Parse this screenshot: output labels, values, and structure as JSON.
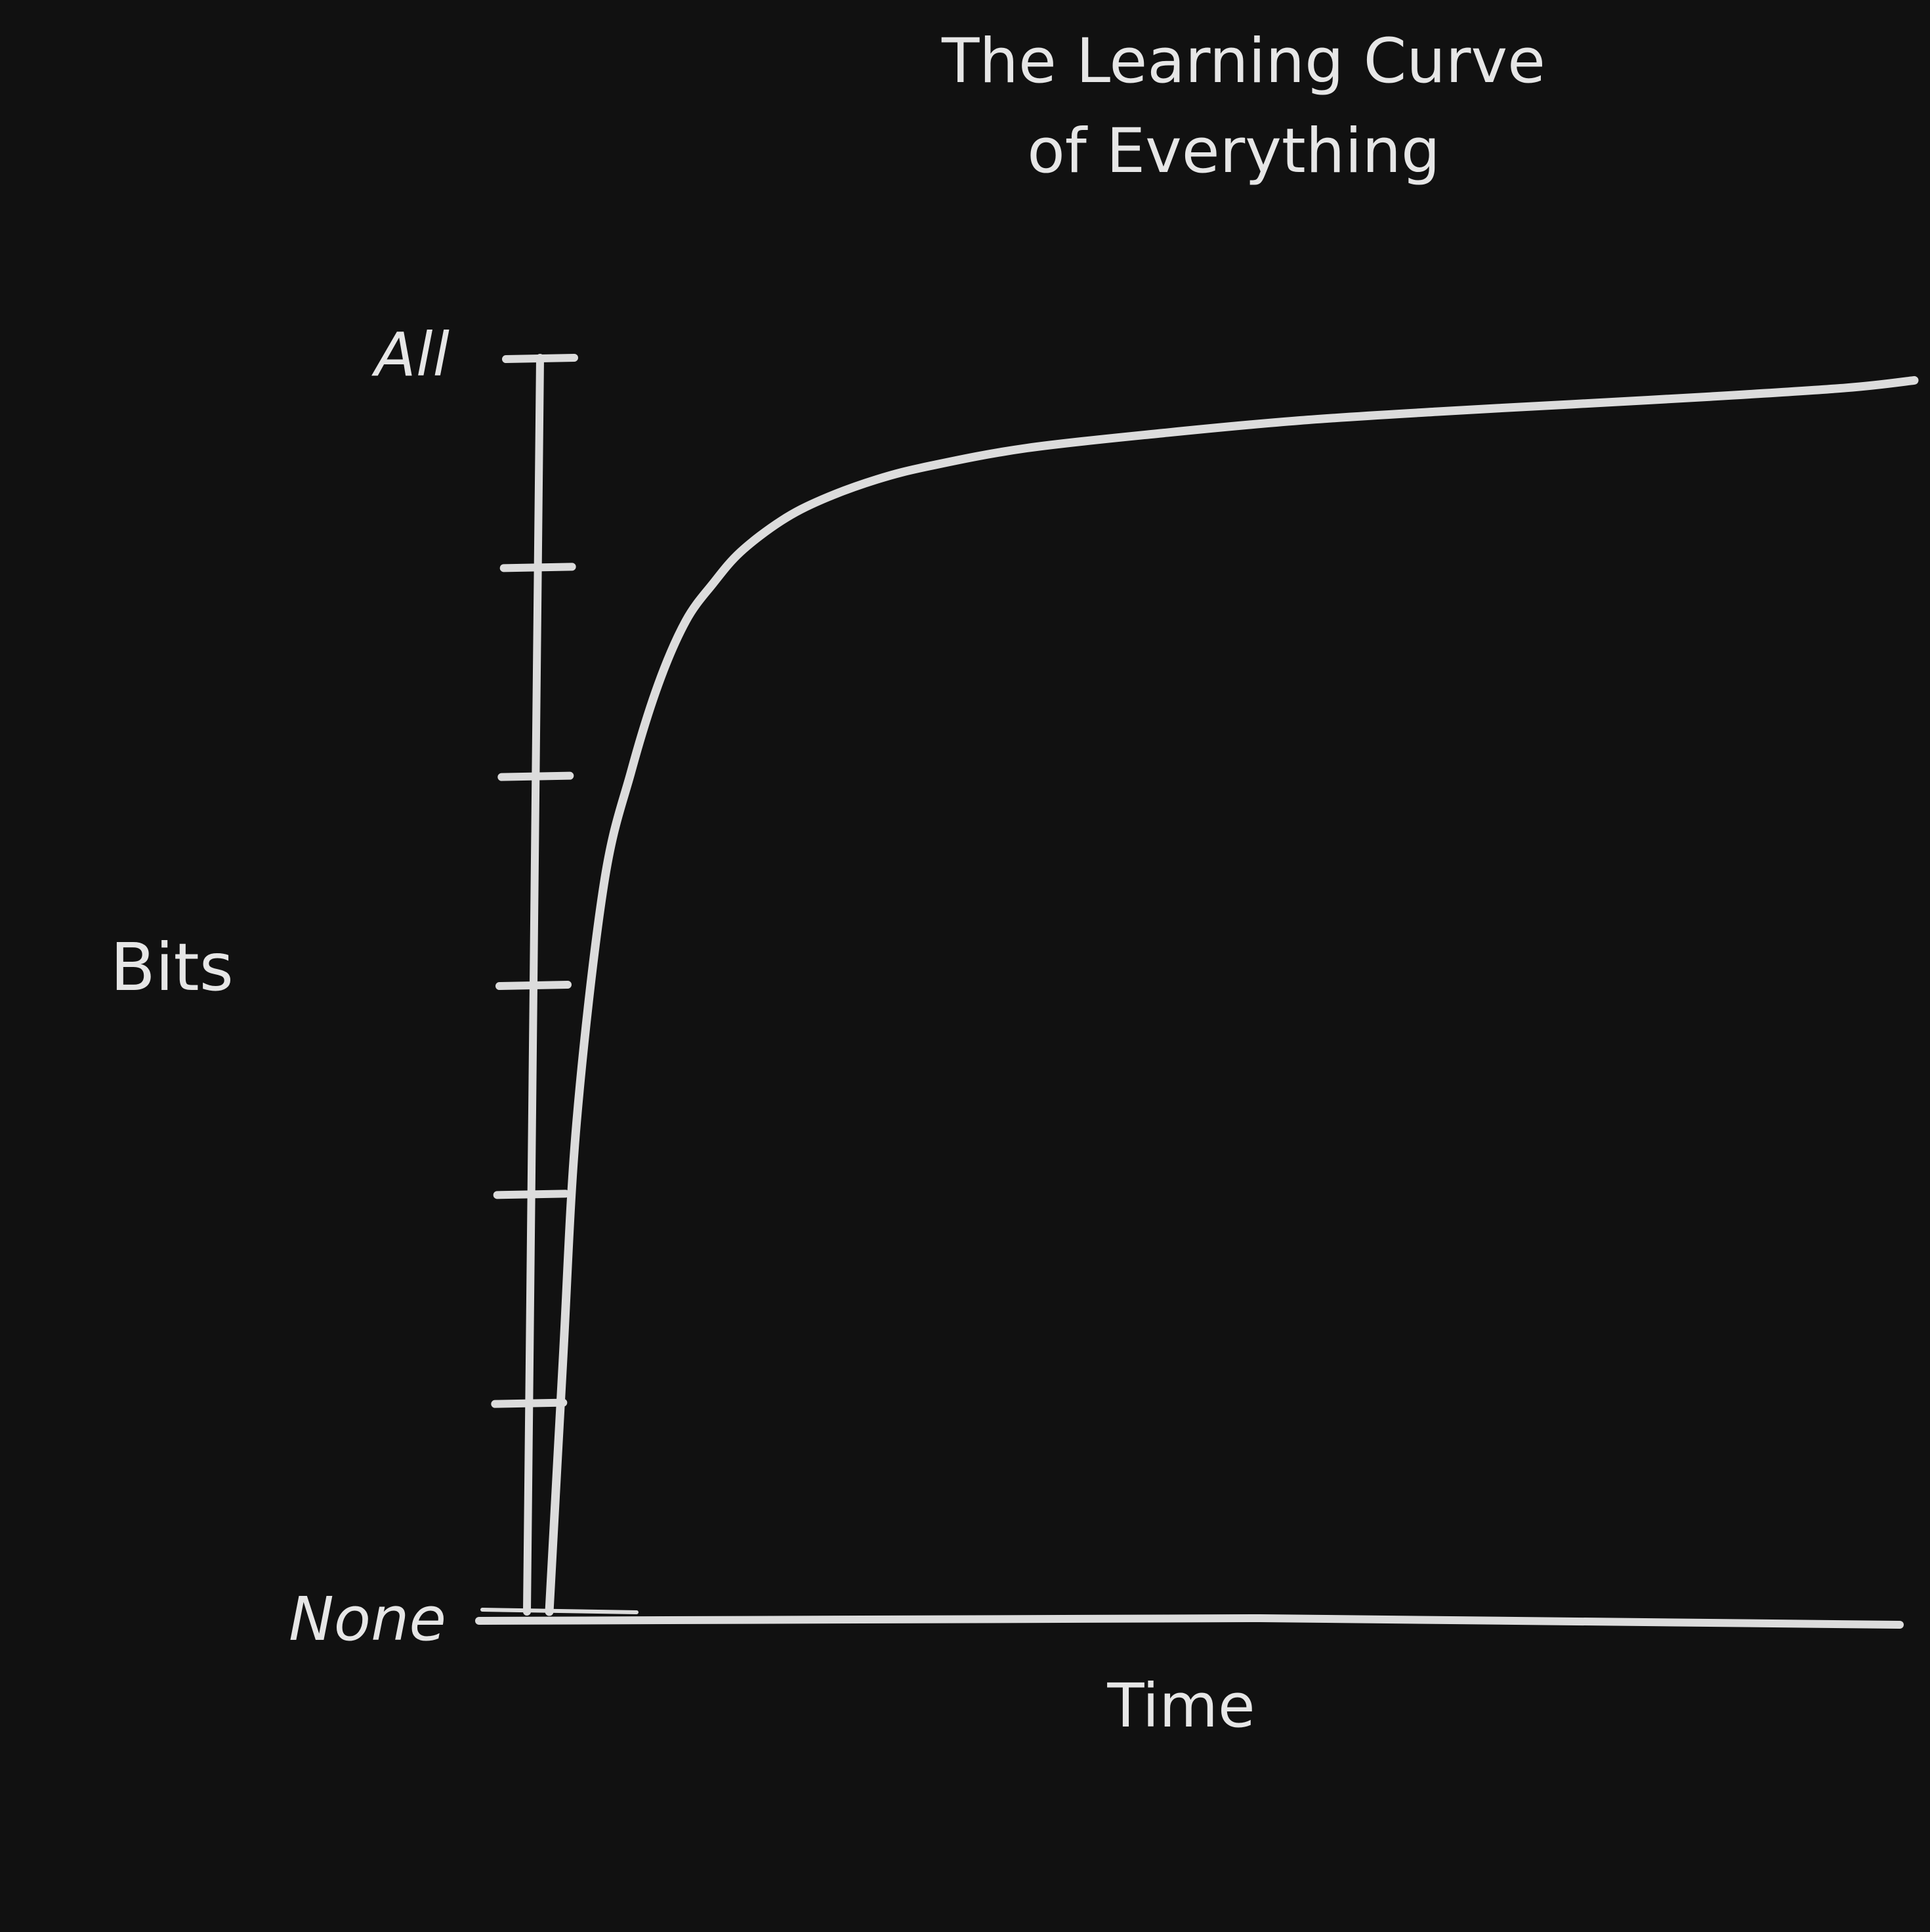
{
  "colors": {
    "background": "#111111",
    "ink": "#dcdcdc"
  },
  "chart_data": {
    "type": "line",
    "title_lines": [
      "The Learning Curve",
      "of Everything"
    ],
    "xlabel": "Time",
    "ylabel": "Bits",
    "y_tick_labels": {
      "top": "All",
      "bottom": "None"
    },
    "y_tick_count": 7,
    "xlim": [
      0,
      100
    ],
    "ylim": [
      0,
      100
    ],
    "grid": false,
    "legend": "none",
    "series": [
      {
        "x": [
          0,
          1,
          2,
          4,
          6,
          8,
          10,
          12,
          14,
          17,
          20,
          24,
          28,
          35,
          45,
          55,
          65,
          75,
          85,
          95,
          100
        ],
        "y": [
          0,
          20,
          39,
          58,
          67,
          74,
          79,
          82,
          84.5,
          87,
          88.7,
          90.3,
          91.4,
          92.8,
          94,
          95,
          95.7,
          96.3,
          96.9,
          97.6,
          98.2
        ]
      }
    ]
  }
}
